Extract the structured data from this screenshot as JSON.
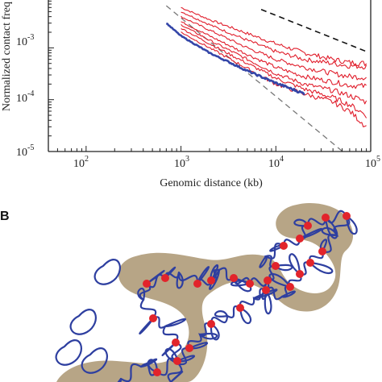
{
  "panel_b_label": "B",
  "colors": {
    "red_curves": "#e01c2a",
    "blue_curve": "#3446a8",
    "dashed_black": "#111111",
    "dashed_gray": "#777777",
    "blob": "#b7a586",
    "chain": "#2e3fa0",
    "beads": "#e2242b",
    "axis": "#222222"
  },
  "chart_data": {
    "type": "line",
    "xlabel": "Genomic distance (kb)",
    "ylabel": "Normalized contact freq",
    "xscale": "log",
    "yscale": "log",
    "xlim": [
      40,
      100000
    ],
    "ylim": [
      1e-05,
      0.009
    ],
    "x_ticks": [
      100,
      1000,
      10000,
      100000
    ],
    "x_tick_labels": [
      {
        "base": "10",
        "exp": "2"
      },
      {
        "base": "10",
        "exp": "3"
      },
      {
        "base": "10",
        "exp": "4"
      },
      {
        "base": "10",
        "exp": "5"
      }
    ],
    "y_ticks": [
      1e-05,
      0.0001,
      0.001
    ],
    "y_tick_labels": [
      {
        "base": "10",
        "exp": "-5"
      },
      {
        "base": "10",
        "exp": "-4"
      },
      {
        "base": "10",
        "exp": "-3"
      }
    ],
    "grid": false,
    "reference_lines": [
      {
        "style": "dashed-black",
        "x": [
          7000,
          90000
        ],
        "y": [
          0.0055,
          0.00085
        ]
      },
      {
        "style": "dashed-gray",
        "x": [
          700,
          80000
        ],
        "y": [
          0.0065,
          5e-06
        ]
      }
    ],
    "series": [
      {
        "color": "red",
        "x": [
          1000,
          2000,
          5000,
          10000,
          20000,
          40000,
          60000,
          90000
        ],
        "y": [
          0.006,
          0.0035,
          0.0019,
          0.0012,
          0.0008,
          0.0006,
          0.00052,
          0.0005
        ]
      },
      {
        "color": "red",
        "x": [
          1000,
          2000,
          5000,
          10000,
          20000,
          40000,
          60000,
          90000
        ],
        "y": [
          0.005,
          0.0028,
          0.0014,
          0.00085,
          0.0006,
          0.0005,
          0.00045,
          0.00044
        ]
      },
      {
        "color": "red",
        "x": [
          1000,
          2000,
          5000,
          10000,
          20000,
          40000,
          60000,
          90000
        ],
        "y": [
          0.004,
          0.0022,
          0.001,
          0.0006,
          0.00042,
          0.00032,
          0.00028,
          0.00027
        ]
      },
      {
        "color": "red",
        "x": [
          1000,
          2000,
          5000,
          10000,
          20000,
          40000,
          60000,
          90000
        ],
        "y": [
          0.0032,
          0.0017,
          0.00075,
          0.00042,
          0.00028,
          0.00022,
          0.00019,
          0.00018
        ]
      },
      {
        "color": "red",
        "x": [
          1000,
          2000,
          5000,
          10000,
          20000,
          40000,
          60000,
          90000
        ],
        "y": [
          0.0028,
          0.0014,
          0.0006,
          0.00032,
          0.0002,
          0.00015,
          0.00012,
          9e-05
        ]
      },
      {
        "color": "red",
        "x": [
          1000,
          2000,
          5000,
          10000,
          20000,
          40000,
          60000,
          90000
        ],
        "y": [
          0.0024,
          0.0012,
          0.0005,
          0.00026,
          0.00016,
          0.00011,
          8e-05,
          5e-05
        ]
      },
      {
        "color": "red",
        "x": [
          1000,
          2000,
          5000,
          10000,
          20000,
          40000,
          60000,
          90000
        ],
        "y": [
          0.002,
          0.001,
          0.0004,
          0.0002,
          0.00013,
          9e-05,
          6e-05,
          3e-05
        ]
      },
      {
        "color": "blue",
        "x": [
          700,
          1000,
          2000,
          5000,
          10000,
          20000
        ],
        "y": [
          0.003,
          0.0017,
          0.0008,
          0.00036,
          0.00021,
          0.00013
        ]
      }
    ]
  }
}
